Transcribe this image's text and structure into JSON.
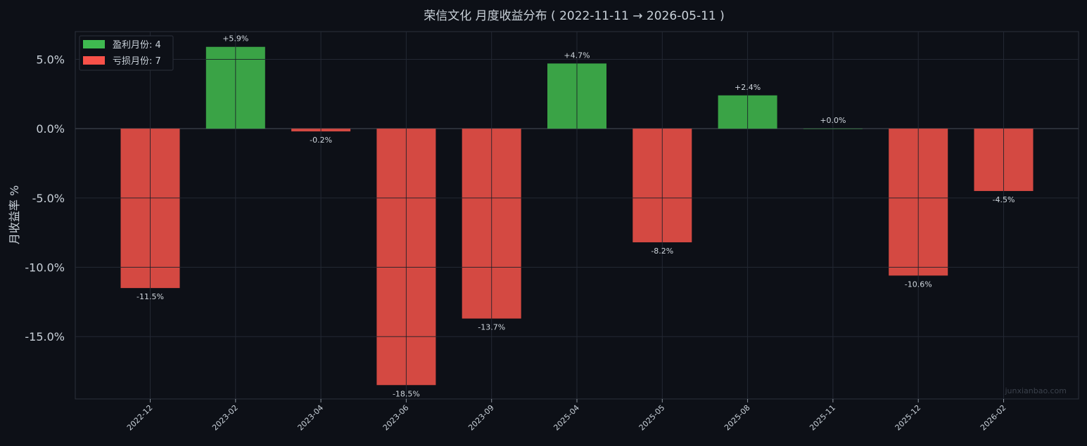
{
  "chart_data": {
    "type": "bar",
    "title": "荣信文化 月度收益分布 ( 2022-11-11 → 2026-05-11 )",
    "xlabel": "",
    "ylabel": "月收益率 %",
    "categories": [
      "2022-12",
      "2023-02",
      "2023-04",
      "2023-06",
      "2023-09",
      "2025-04",
      "2025-05",
      "2025-08",
      "2025-11",
      "2025-12",
      "2026-02"
    ],
    "values": [
      -11.5,
      5.9,
      -0.2,
      -18.5,
      -13.7,
      4.7,
      -8.2,
      2.4,
      0.0,
      -10.6,
      -4.5
    ],
    "data_labels": [
      "-11.5%",
      "+5.9%",
      "-0.2%",
      "-18.5%",
      "-13.7%",
      "+4.7%",
      "-8.2%",
      "+2.4%",
      "+0.0%",
      "-10.6%",
      "-4.5%"
    ],
    "yticks": [
      5,
      0,
      -5,
      -10,
      -15
    ],
    "ytick_labels": [
      "5.0%",
      "0.0%",
      "-5.0%",
      "-10.0%",
      "-15.0%"
    ],
    "ylim": [
      -19.5,
      7.0
    ],
    "grid": true,
    "legend": {
      "placement": "top-left",
      "entries": [
        {
          "label": "盈利月份: 4",
          "color": "#3fb950"
        },
        {
          "label": "亏损月份: 7",
          "color": "#f85149"
        }
      ]
    },
    "colors": {
      "positive": "#3aa346",
      "negative": "#d44942",
      "background": "#0d1017",
      "grid": "#232833",
      "text": "#c9d1d9"
    }
  },
  "watermark": "junxianbao.com"
}
